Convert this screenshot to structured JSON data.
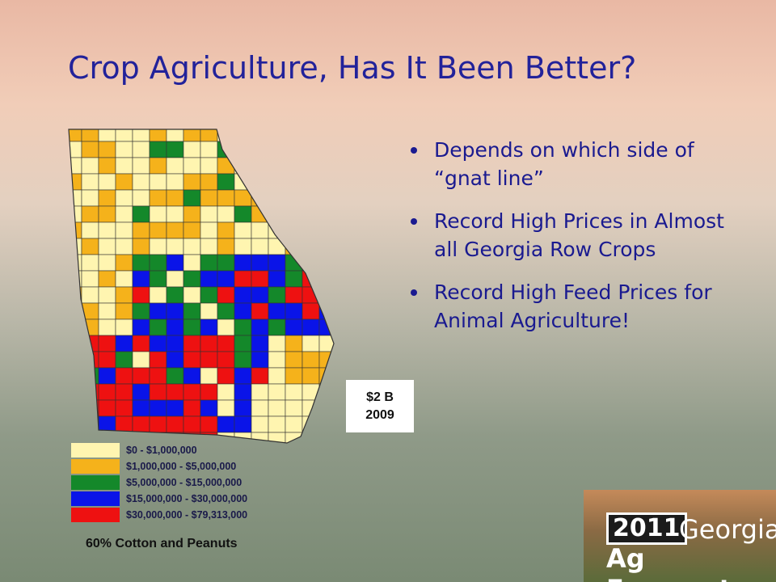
{
  "title": "Crop Agriculture, Has It Been Better?",
  "bullets": [
    "Depends on which side of “gnat line”",
    "Record High Prices in Almost all Georgia Row Crops",
    "Record High Feed Prices for Animal Agriculture!"
  ],
  "legend": [
    {
      "label": "$0 - $1,000,000",
      "color": "#fff5b0"
    },
    {
      "label": "$1,000,000 - $5,000,000",
      "color": "#f5b21b"
    },
    {
      "label": "$5,000,000 - $15,000,000",
      "color": "#14882a"
    },
    {
      "label": "$15,000,000 - $30,000,000",
      "color": "#0a14e8"
    },
    {
      "label": "$30,000,000 - $79,313,000",
      "color": "#ee1111"
    }
  ],
  "caption": "60% Cotton and Peanuts",
  "callout": [
    "$2 B",
    "2009"
  ],
  "logo": {
    "year": "2011",
    "state": "Georgia",
    "name": "Ag Forecast"
  }
}
